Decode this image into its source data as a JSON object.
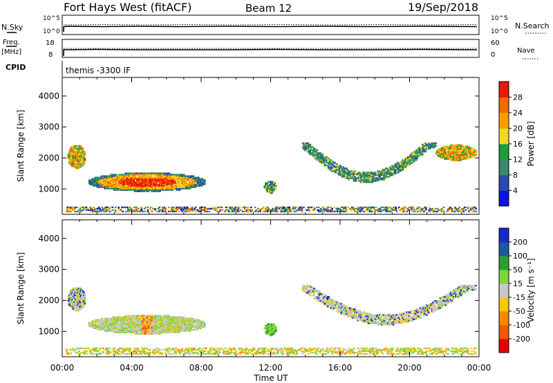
{
  "header": {
    "station": "Fort Hays West (fitACF)",
    "beam": "Beam 12",
    "date": "19/Sep/2018"
  },
  "top_panels": {
    "nsky_label": "N.Sky",
    "nsearch_label": "N.Search",
    "noise_ticks": [
      "10^5",
      "10^0"
    ],
    "freq_label_1": "Freq.",
    "freq_label_2": "[MHz]",
    "freq_ticks": [
      "18",
      "8"
    ],
    "nave_label": "Nave",
    "nave_ticks": [
      "60",
      "0"
    ],
    "cpid_label": "CPID",
    "cpid_value": "themis -3300 IF"
  },
  "colors": {
    "power": [
      "#0a14e6",
      "#2a4aa8",
      "#3a8a6a",
      "#1f9c3a",
      "#f2d820",
      "#f5a000",
      "#f06a00",
      "#e81a00"
    ],
    "velocity": [
      "#e80000",
      "#f05a00",
      "#f58a00",
      "#f5c800",
      "#c8c8c8",
      "#7ad63a",
      "#2aa030",
      "#1a5aa0",
      "#1a2ac8"
    ],
    "ground": "#808080"
  },
  "chart_data": [
    {
      "type": "heatmap",
      "name": "power",
      "xlabel": "Time UT",
      "ylabel": "Slant Range [km]",
      "xlim": [
        0,
        24
      ],
      "ylim": [
        180,
        4600
      ],
      "yticks": [
        1000,
        2000,
        3000,
        4000
      ],
      "ytick_labels": [
        "1000",
        "2000",
        "3000",
        "4000"
      ],
      "colorbar_label": "Power [dB]",
      "colorbar_range": [
        0,
        32
      ],
      "colorbar_ticks": [
        4,
        8,
        12,
        16,
        20,
        24,
        28
      ],
      "colorbar_tick_labels": [
        "4",
        "8",
        "12",
        "16",
        "20",
        "24",
        "28"
      ],
      "regions": [
        {
          "t0": 0.3,
          "t1": 1.3,
          "r0": 1650,
          "r1": 2400,
          "level": 4
        },
        {
          "t0": 1.5,
          "t1": 8.2,
          "r0": 900,
          "r1": 1500,
          "level": 5
        },
        {
          "t0": 11.6,
          "t1": 12.3,
          "r0": 850,
          "r1": 1250,
          "level": 3
        },
        {
          "t0": 13.8,
          "t1": 21.5,
          "r0": 1150,
          "r1": 2500,
          "level": 3
        },
        {
          "t0": 21.5,
          "t1": 23.8,
          "r0": 1900,
          "r1": 2400,
          "level": 4
        },
        {
          "t0": 0.2,
          "t1": 23.8,
          "r0": 250,
          "r1": 400,
          "level": 1
        }
      ]
    },
    {
      "type": "heatmap",
      "name": "velocity",
      "xlabel": "Time UT",
      "ylabel": "Slant Range [km]",
      "xlim": [
        0,
        24
      ],
      "ylim": [
        180,
        4600
      ],
      "yticks": [
        1000,
        2000,
        3000,
        4000
      ],
      "ytick_labels": [
        "1000",
        "2000",
        "3000",
        "4000"
      ],
      "xticks": [
        0,
        4,
        8,
        12,
        16,
        20,
        24
      ],
      "xtick_labels": [
        "00:00",
        "04:00",
        "08:00",
        "12:00",
        "16:00",
        "20:00",
        "00:00"
      ],
      "colorbar_label": "Velocity [m s⁻¹]",
      "colorbar_range": [
        -250,
        250
      ],
      "colorbar_ticks": [
        200,
        100,
        50,
        15,
        -15,
        -50,
        -100,
        -200
      ],
      "colorbar_tick_labels": [
        "200",
        "100",
        "50",
        "15",
        "-15",
        "-50",
        "-100",
        "-200"
      ],
      "regions": [
        {
          "t0": 0.3,
          "t1": 1.3,
          "r0": 1650,
          "r1": 2400,
          "level": "grey"
        },
        {
          "t0": 1.5,
          "t1": 8.2,
          "r0": 900,
          "r1": 1500,
          "level": "mixed"
        },
        {
          "t0": 11.6,
          "t1": 12.3,
          "r0": 850,
          "r1": 1250,
          "level": "green"
        },
        {
          "t0": 13.8,
          "t1": 23.8,
          "r0": 1150,
          "r1": 2500,
          "level": "grey"
        },
        {
          "t0": 0.2,
          "t1": 23.8,
          "r0": 250,
          "r1": 450,
          "level": "ground"
        }
      ]
    }
  ]
}
